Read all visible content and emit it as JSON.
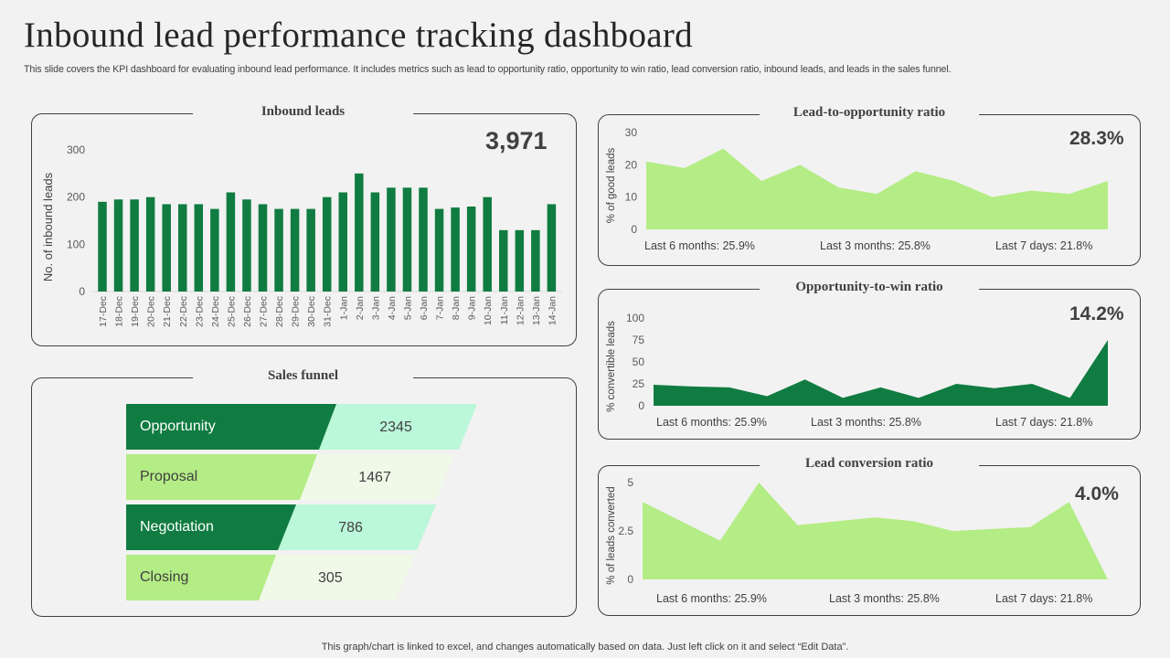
{
  "header": {
    "title": "Inbound lead performance tracking dashboard",
    "subtitle": "This slide covers the KPI dashboard for evaluating inbound lead performance. It includes metrics such as lead to opportunity ratio, opportunity to win ratio, lead conversion ratio, inbound leads, and leads in the sales funnel."
  },
  "footer": "This graph/chart is linked to excel,  and changes automatically based on data. Just left click on it and select “Edit Data”.",
  "colors": {
    "dark_green": "#107c41",
    "light_green": "#b4ec85",
    "mint": "#bbf7d9",
    "pale_green": "#f0f9e8",
    "background": "#f2f2f2"
  },
  "inbound_leads": {
    "title": "Inbound leads",
    "total": "3,971"
  },
  "lead_to_opportunity": {
    "title": "Lead-to-opportunity ratio",
    "value": "28.3%",
    "stats": [
      "Last 6 months: 25.9%",
      "Last 3 months: 25.8%",
      "Last 7 days: 21.8%"
    ]
  },
  "opportunity_to_win": {
    "title": "Opportunity-to-win ratio",
    "value": "14.2%",
    "stats": [
      "Last 6 months: 25.9%",
      "Last 3 months: 25.8%",
      "Last 7 days: 21.8%"
    ]
  },
  "lead_conversion": {
    "title": "Lead conversion ratio",
    "value": "4.0%",
    "stats": [
      "Last 6 months: 25.9%",
      "Last 3 months: 25.8%",
      "Last 7 days: 21.8%"
    ]
  },
  "sales_funnel": {
    "title": "Sales funnel",
    "stages": [
      {
        "label": "Opportunity",
        "value": "2345"
      },
      {
        "label": "Proposal",
        "value": "1467"
      },
      {
        "label": "Negotiation",
        "value": "786"
      },
      {
        "label": "Closing",
        "value": "305"
      }
    ]
  },
  "chart_data": [
    {
      "type": "bar",
      "title": "Inbound leads",
      "xlabel": "",
      "ylabel": "No. of inbound leads",
      "ylim": [
        0,
        300
      ],
      "yticks": [
        0,
        100,
        200,
        300
      ],
      "grid": false,
      "categories": [
        "17-Dec",
        "18-Dec",
        "19-Dec",
        "20-Dec",
        "21-Dec",
        "22-Dec",
        "23-Dec",
        "24-Dec",
        "25-Dec",
        "26-Dec",
        "27-Dec",
        "28-Dec",
        "29-Dec",
        "30-Dec",
        "31-Dec",
        "1-Jan",
        "2-Jan",
        "3-Jan",
        "4-Jan",
        "5-Jan",
        "6-Jan",
        "7-Jan",
        "8-Jan",
        "9-Jan",
        "10-Jan",
        "11-Jan",
        "12-Jan",
        "13-Jan",
        "14-Jan"
      ],
      "values": [
        190,
        195,
        195,
        200,
        185,
        185,
        185,
        175,
        210,
        195,
        185,
        175,
        175,
        175,
        200,
        210,
        250,
        210,
        220,
        220,
        220,
        175,
        178,
        180,
        200,
        130,
        130,
        130,
        185
      ]
    },
    {
      "type": "area",
      "title": "Lead-to-opportunity ratio",
      "ylabel": "% of good leads",
      "ylim": [
        0,
        30
      ],
      "yticks": [
        0,
        10,
        20,
        30
      ],
      "grid": false,
      "values": [
        21,
        19,
        25,
        15,
        20,
        13,
        11,
        18,
        15,
        10,
        12,
        11,
        15
      ]
    },
    {
      "type": "area",
      "title": "Opportunity-to-win ratio",
      "ylabel": "% convertible leads",
      "ylim": [
        0,
        100
      ],
      "yticks": [
        0,
        25,
        50,
        75,
        100
      ],
      "grid": false,
      "values": [
        24,
        22,
        21,
        11,
        30,
        9,
        21,
        9,
        25,
        20,
        25,
        9,
        75
      ]
    },
    {
      "type": "area",
      "title": "Lead conversion ratio",
      "ylabel": "% of leads converted",
      "ylim": [
        0,
        5
      ],
      "yticks": [
        0,
        2.5,
        5
      ],
      "ytick_labels": [
        "0",
        "2.5",
        "5"
      ],
      "grid": false,
      "values": [
        4.0,
        3.0,
        2.0,
        5.0,
        2.8,
        3.0,
        3.2,
        3.0,
        2.5,
        2.6,
        2.7,
        4.0,
        0
      ]
    }
  ]
}
